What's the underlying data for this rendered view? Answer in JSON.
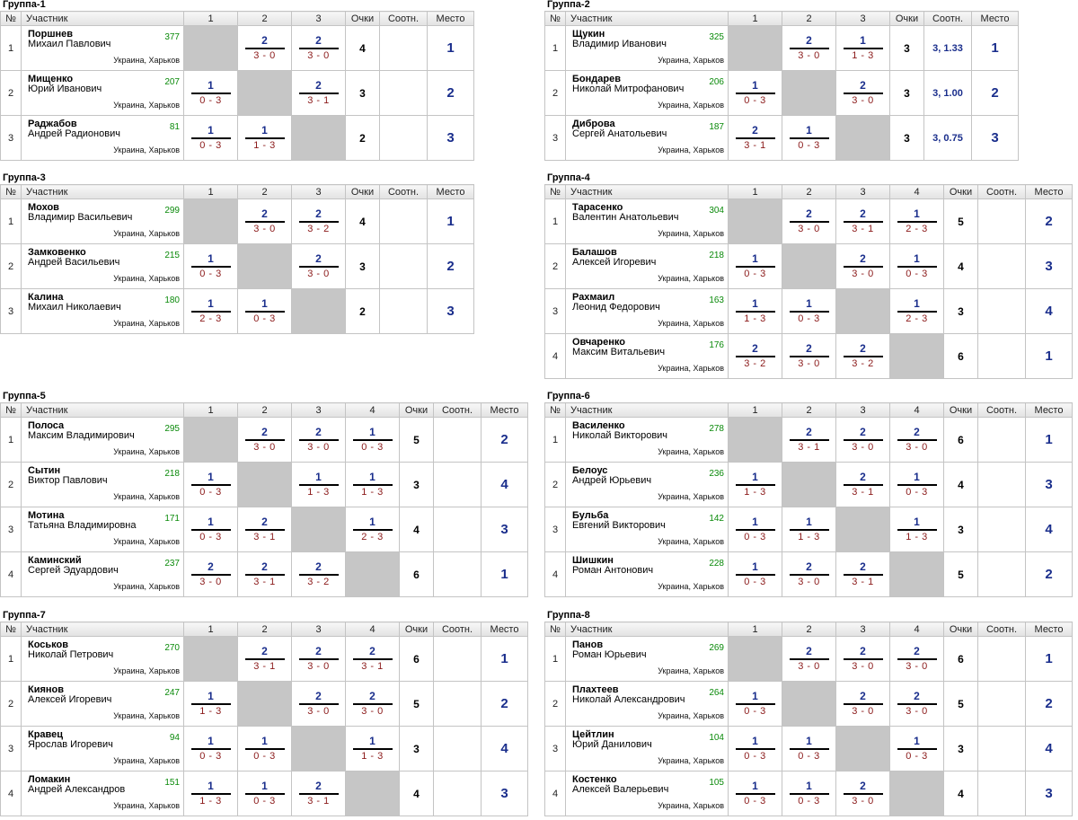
{
  "headers": {
    "num": "№",
    "player": "Участник",
    "points": "Очки",
    "ratio": "Соотн.",
    "place": "Место"
  },
  "groups": [
    {
      "title": "Группа-1",
      "cols": [
        "1",
        "2",
        "3"
      ],
      "players": [
        {
          "num": "1",
          "surname": "Поршнев",
          "name": "Михаил Павлович",
          "rating": "377",
          "city": "Украина, Харьков",
          "res": [
            null,
            {
              "s": "2",
              "sc": "3 - 0"
            },
            {
              "s": "2",
              "sc": "3 - 0"
            }
          ],
          "points": "4",
          "ratio": "",
          "place": "1"
        },
        {
          "num": "2",
          "surname": "Мищенко",
          "name": "Юрий Иванович",
          "rating": "207",
          "city": "Украина, Харьков",
          "res": [
            {
              "s": "1",
              "sc": "0 - 3"
            },
            null,
            {
              "s": "2",
              "sc": "3 - 1"
            }
          ],
          "points": "3",
          "ratio": "",
          "place": "2"
        },
        {
          "num": "3",
          "surname": "Раджабов",
          "name": "Андрей Радионович",
          "rating": "81",
          "city": "Украина, Харьков",
          "res": [
            {
              "s": "1",
              "sc": "0 - 3"
            },
            {
              "s": "1",
              "sc": "1 - 3"
            },
            null
          ],
          "points": "2",
          "ratio": "",
          "place": "3"
        }
      ]
    },
    {
      "title": "Группа-2",
      "cols": [
        "1",
        "2",
        "3"
      ],
      "players": [
        {
          "num": "1",
          "surname": "Щукин",
          "name": "Владимир Иванович",
          "rating": "325",
          "city": "Украина, Харьков",
          "res": [
            null,
            {
              "s": "2",
              "sc": "3 - 0"
            },
            {
              "s": "1",
              "sc": "1 - 3"
            }
          ],
          "points": "3",
          "ratio": "3, 1.33",
          "place": "1"
        },
        {
          "num": "2",
          "surname": "Бондарев",
          "name": "Николай Митрофанович",
          "rating": "206",
          "city": "Украина, Харьков",
          "res": [
            {
              "s": "1",
              "sc": "0 - 3"
            },
            null,
            {
              "s": "2",
              "sc": "3 - 0"
            }
          ],
          "points": "3",
          "ratio": "3, 1.00",
          "place": "2"
        },
        {
          "num": "3",
          "surname": "Диброва",
          "name": "Сергей Анатольевич",
          "rating": "187",
          "city": "Украина, Харьков",
          "res": [
            {
              "s": "2",
              "sc": "3 - 1"
            },
            {
              "s": "1",
              "sc": "0 - 3"
            },
            null
          ],
          "points": "3",
          "ratio": "3, 0.75",
          "place": "3"
        }
      ]
    },
    {
      "title": "Группа-3",
      "cols": [
        "1",
        "2",
        "3"
      ],
      "players": [
        {
          "num": "1",
          "surname": "Мохов",
          "name": "Владимир Васильевич",
          "rating": "299",
          "city": "Украина, Харьков",
          "res": [
            null,
            {
              "s": "2",
              "sc": "3 - 0"
            },
            {
              "s": "2",
              "sc": "3 - 2"
            }
          ],
          "points": "4",
          "ratio": "",
          "place": "1"
        },
        {
          "num": "2",
          "surname": "Замковенко",
          "name": "Андрей Васильевич",
          "rating": "215",
          "city": "Украина, Харьков",
          "res": [
            {
              "s": "1",
              "sc": "0 - 3"
            },
            null,
            {
              "s": "2",
              "sc": "3 - 0"
            }
          ],
          "points": "3",
          "ratio": "",
          "place": "2"
        },
        {
          "num": "3",
          "surname": "Калина",
          "name": "Михаил Николаевич",
          "rating": "180",
          "city": "Украина, Харьков",
          "res": [
            {
              "s": "1",
              "sc": "2 - 3"
            },
            {
              "s": "1",
              "sc": "0 - 3"
            },
            null
          ],
          "points": "2",
          "ratio": "",
          "place": "3"
        }
      ]
    },
    {
      "title": "Группа-4",
      "cols": [
        "1",
        "2",
        "3",
        "4"
      ],
      "players": [
        {
          "num": "1",
          "surname": "Тарасенко",
          "name": "Валентин Анатольевич",
          "rating": "304",
          "city": "Украина, Харьков",
          "res": [
            null,
            {
              "s": "2",
              "sc": "3 - 0"
            },
            {
              "s": "2",
              "sc": "3 - 1"
            },
            {
              "s": "1",
              "sc": "2 - 3"
            }
          ],
          "points": "5",
          "ratio": "",
          "place": "2"
        },
        {
          "num": "2",
          "surname": "Балашов",
          "name": "Алексей Игоревич",
          "rating": "218",
          "city": "Украина, Харьков",
          "res": [
            {
              "s": "1",
              "sc": "0 - 3"
            },
            null,
            {
              "s": "2",
              "sc": "3 - 0"
            },
            {
              "s": "1",
              "sc": "0 - 3"
            }
          ],
          "points": "4",
          "ratio": "",
          "place": "3"
        },
        {
          "num": "3",
          "surname": "Рахмаил",
          "name": "Леонид Федорович",
          "rating": "163",
          "city": "Украина, Харьков",
          "res": [
            {
              "s": "1",
              "sc": "1 - 3"
            },
            {
              "s": "1",
              "sc": "0 - 3"
            },
            null,
            {
              "s": "1",
              "sc": "2 - 3"
            }
          ],
          "points": "3",
          "ratio": "",
          "place": "4"
        },
        {
          "num": "4",
          "surname": "Овчаренко",
          "name": "Максим Витальевич",
          "rating": "176",
          "city": "Украина, Харьков",
          "res": [
            {
              "s": "2",
              "sc": "3 - 2"
            },
            {
              "s": "2",
              "sc": "3 - 0"
            },
            {
              "s": "2",
              "sc": "3 - 2"
            },
            null
          ],
          "points": "6",
          "ratio": "",
          "place": "1"
        }
      ]
    },
    {
      "title": "Группа-5",
      "cols": [
        "1",
        "2",
        "3",
        "4"
      ],
      "players": [
        {
          "num": "1",
          "surname": "Полоса",
          "name": "Максим Владимирович",
          "rating": "295",
          "city": "Украина, Харьков",
          "res": [
            null,
            {
              "s": "2",
              "sc": "3 - 0"
            },
            {
              "s": "2",
              "sc": "3 - 0"
            },
            {
              "s": "1",
              "sc": "0 - 3"
            }
          ],
          "points": "5",
          "ratio": "",
          "place": "2"
        },
        {
          "num": "2",
          "surname": "Сытин",
          "name": "Виктор Павлович",
          "rating": "218",
          "city": "Украина, Харьков",
          "res": [
            {
              "s": "1",
              "sc": "0 - 3"
            },
            null,
            {
              "s": "1",
              "sc": "1 - 3"
            },
            {
              "s": "1",
              "sc": "1 - 3"
            }
          ],
          "points": "3",
          "ratio": "",
          "place": "4"
        },
        {
          "num": "3",
          "surname": "Мотина",
          "name": "Татьяна Владимировна",
          "rating": "171",
          "city": "Украина, Харьков",
          "res": [
            {
              "s": "1",
              "sc": "0 - 3"
            },
            {
              "s": "2",
              "sc": "3 - 1"
            },
            null,
            {
              "s": "1",
              "sc": "2 - 3"
            }
          ],
          "points": "4",
          "ratio": "",
          "place": "3"
        },
        {
          "num": "4",
          "surname": "Каминский",
          "name": "Сергей Эдуардович",
          "rating": "237",
          "city": "Украина, Харьков",
          "res": [
            {
              "s": "2",
              "sc": "3 - 0"
            },
            {
              "s": "2",
              "sc": "3 - 1"
            },
            {
              "s": "2",
              "sc": "3 - 2"
            },
            null
          ],
          "points": "6",
          "ratio": "",
          "place": "1"
        }
      ]
    },
    {
      "title": "Группа-6",
      "cols": [
        "1",
        "2",
        "3",
        "4"
      ],
      "players": [
        {
          "num": "1",
          "surname": "Василенко",
          "name": "Николай Викторович",
          "rating": "278",
          "city": "Украина, Харьков",
          "res": [
            null,
            {
              "s": "2",
              "sc": "3 - 1"
            },
            {
              "s": "2",
              "sc": "3 - 0"
            },
            {
              "s": "2",
              "sc": "3 - 0"
            }
          ],
          "points": "6",
          "ratio": "",
          "place": "1"
        },
        {
          "num": "2",
          "surname": "Белоус",
          "name": "Андрей Юрьевич",
          "rating": "236",
          "city": "Украина, Харьков",
          "res": [
            {
              "s": "1",
              "sc": "1 - 3"
            },
            null,
            {
              "s": "2",
              "sc": "3 - 1"
            },
            {
              "s": "1",
              "sc": "0 - 3"
            }
          ],
          "points": "4",
          "ratio": "",
          "place": "3"
        },
        {
          "num": "3",
          "surname": "Бульба",
          "name": "Евгений Викторович",
          "rating": "142",
          "city": "Украина, Харьков",
          "res": [
            {
              "s": "1",
              "sc": "0 - 3"
            },
            {
              "s": "1",
              "sc": "1 - 3"
            },
            null,
            {
              "s": "1",
              "sc": "1 - 3"
            }
          ],
          "points": "3",
          "ratio": "",
          "place": "4"
        },
        {
          "num": "4",
          "surname": "Шишкин",
          "name": "Роман Антонович",
          "rating": "228",
          "city": "Украина, Харьков",
          "res": [
            {
              "s": "1",
              "sc": "0 - 3"
            },
            {
              "s": "2",
              "sc": "3 - 0"
            },
            {
              "s": "2",
              "sc": "3 - 1"
            },
            null
          ],
          "points": "5",
          "ratio": "",
          "place": "2"
        }
      ]
    },
    {
      "title": "Группа-7",
      "cols": [
        "1",
        "2",
        "3",
        "4"
      ],
      "players": [
        {
          "num": "1",
          "surname": "Коськов",
          "name": "Николай Петрович",
          "rating": "270",
          "city": "Украина, Харьков",
          "res": [
            null,
            {
              "s": "2",
              "sc": "3 - 1"
            },
            {
              "s": "2",
              "sc": "3 - 0"
            },
            {
              "s": "2",
              "sc": "3 - 1"
            }
          ],
          "points": "6",
          "ratio": "",
          "place": "1"
        },
        {
          "num": "2",
          "surname": "Киянов",
          "name": "Алексей Игоревич",
          "rating": "247",
          "city": "Украина, Харьков",
          "res": [
            {
              "s": "1",
              "sc": "1 - 3"
            },
            null,
            {
              "s": "2",
              "sc": "3 - 0"
            },
            {
              "s": "2",
              "sc": "3 - 0"
            }
          ],
          "points": "5",
          "ratio": "",
          "place": "2"
        },
        {
          "num": "3",
          "surname": "Кравец",
          "name": "Ярослав Игоревич",
          "rating": "94",
          "city": "Украина, Харьков",
          "res": [
            {
              "s": "1",
              "sc": "0 - 3"
            },
            {
              "s": "1",
              "sc": "0 - 3"
            },
            null,
            {
              "s": "1",
              "sc": "1 - 3"
            }
          ],
          "points": "3",
          "ratio": "",
          "place": "4"
        },
        {
          "num": "4",
          "surname": "Ломакин",
          "name": "Андрей Александров",
          "rating": "151",
          "city": "Украина, Харьков",
          "res": [
            {
              "s": "1",
              "sc": "1 - 3"
            },
            {
              "s": "1",
              "sc": "0 - 3"
            },
            {
              "s": "2",
              "sc": "3 - 1"
            },
            null
          ],
          "points": "4",
          "ratio": "",
          "place": "3"
        }
      ]
    },
    {
      "title": "Группа-8",
      "cols": [
        "1",
        "2",
        "3",
        "4"
      ],
      "players": [
        {
          "num": "1",
          "surname": "Панов",
          "name": "Роман Юрьевич",
          "rating": "269",
          "city": "Украина, Харьков",
          "res": [
            null,
            {
              "s": "2",
              "sc": "3 - 0"
            },
            {
              "s": "2",
              "sc": "3 - 0"
            },
            {
              "s": "2",
              "sc": "3 - 0"
            }
          ],
          "points": "6",
          "ratio": "",
          "place": "1"
        },
        {
          "num": "2",
          "surname": "Плахтеев",
          "name": "Николай Александрович",
          "rating": "264",
          "city": "Украина, Харьков",
          "res": [
            {
              "s": "1",
              "sc": "0 - 3"
            },
            null,
            {
              "s": "2",
              "sc": "3 - 0"
            },
            {
              "s": "2",
              "sc": "3 - 0"
            }
          ],
          "points": "5",
          "ratio": "",
          "place": "2"
        },
        {
          "num": "3",
          "surname": "Цейтлин",
          "name": "Юрий Данилович",
          "rating": "104",
          "city": "Украина, Харьков",
          "res": [
            {
              "s": "1",
              "sc": "0 - 3"
            },
            {
              "s": "1",
              "sc": "0 - 3"
            },
            null,
            {
              "s": "1",
              "sc": "0 - 3"
            }
          ],
          "points": "3",
          "ratio": "",
          "place": "4"
        },
        {
          "num": "4",
          "surname": "Костенко",
          "name": "Алексей Валерьевич",
          "rating": "105",
          "city": "Украина, Харьков",
          "res": [
            {
              "s": "1",
              "sc": "0 - 3"
            },
            {
              "s": "1",
              "sc": "0 - 3"
            },
            {
              "s": "2",
              "sc": "3 - 0"
            },
            null
          ],
          "points": "4",
          "ratio": "",
          "place": "3"
        }
      ]
    }
  ]
}
